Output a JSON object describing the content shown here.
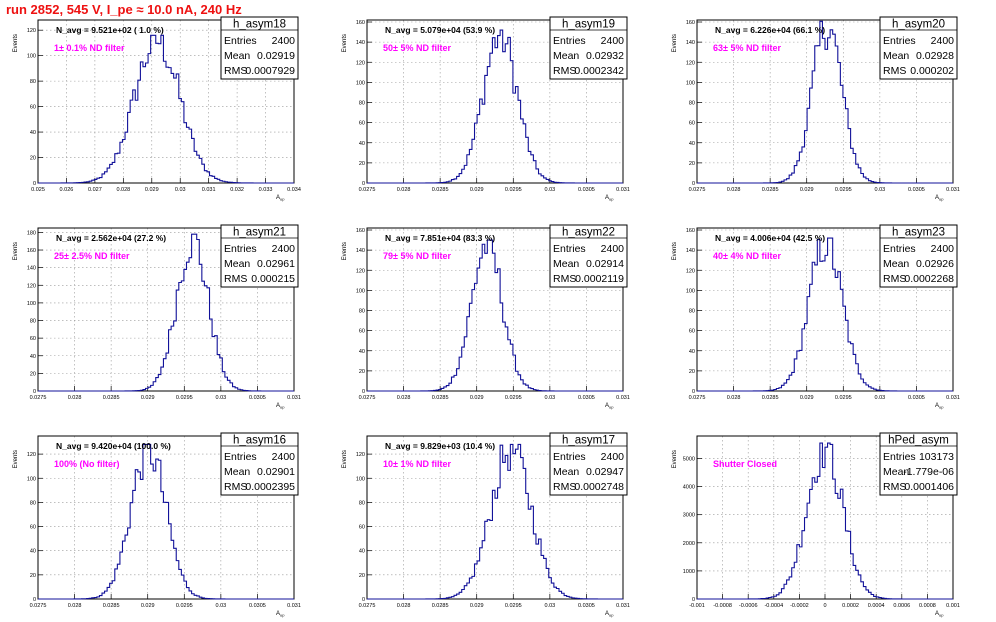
{
  "header": {
    "title": "run 2852,   545 V, I_pe ≈ 10.0 nA, 240 Hz"
  },
  "colors": {
    "title": "#ee1111",
    "histogram": "#111199",
    "filter_label": "#ff00ff"
  },
  "chart_data": [
    {
      "type": "histogram",
      "name": "h_asym18",
      "navg": "N_avg = 9.521e+02 ( 1.0 %)",
      "filter": "1± 0.1% ND filter",
      "stats": {
        "entries": "2400",
        "mean": "0.02919",
        "rms": "0.0007929"
      },
      "xlim": [
        0.025,
        0.034
      ],
      "xticks": [
        "0.025",
        "0.026",
        "0.027",
        "0.028",
        "0.029",
        "0.03",
        "0.031",
        "0.032",
        "0.033",
        "0.034"
      ],
      "ylim": [
        0,
        128
      ],
      "yticks": [
        0,
        20,
        40,
        60,
        80,
        100,
        120
      ],
      "xlabel": "A_up",
      "ylabel": "Events",
      "shape": {
        "mean": 0.02919,
        "sigma": 0.00079,
        "peak": 116
      }
    },
    {
      "type": "histogram",
      "name": "h_asym19",
      "navg": "N_avg = 5.079e+04 (53.9 %)",
      "filter": "50± 5% ND filter",
      "stats": {
        "entries": "2400",
        "mean": "0.02932",
        "rms": "0.0002342"
      },
      "xlim": [
        0.0275,
        0.031
      ],
      "xticks": [
        "0.0275",
        "0.028",
        "0.0285",
        "0.029",
        "0.0295",
        "0.03",
        "0.0305",
        "0.031"
      ],
      "ylim": [
        0,
        162
      ],
      "yticks": [
        0,
        20,
        40,
        60,
        80,
        100,
        120,
        140,
        160
      ],
      "xlabel": "A_up",
      "ylabel": "Events",
      "shape": {
        "mean": 0.02932,
        "sigma": 0.000234,
        "peak": 152
      }
    },
    {
      "type": "histogram",
      "name": "h_asym20",
      "navg": "N_avg = 6.226e+04 (66.1 %)",
      "filter": "63± 5% ND filter",
      "stats": {
        "entries": "2400",
        "mean": "0.02928",
        "rms": "0.000202"
      },
      "xlim": [
        0.0275,
        0.031
      ],
      "xticks": [
        "0.0275",
        "0.028",
        "0.0285",
        "0.029",
        "0.0295",
        "0.03",
        "0.0305",
        "0.031"
      ],
      "ylim": [
        0,
        162
      ],
      "yticks": [
        0,
        20,
        40,
        60,
        80,
        100,
        120,
        140,
        160
      ],
      "xlabel": "A_up",
      "ylabel": "Events",
      "shape": {
        "mean": 0.02928,
        "sigma": 0.000202,
        "peak": 162
      }
    },
    {
      "type": "histogram",
      "name": "h_asym21",
      "navg": "N_avg = 2.562e+04 (27.2 %)",
      "filter": "25± 2.5% ND filter",
      "stats": {
        "entries": "2400",
        "mean": "0.02961",
        "rms": "0.000215"
      },
      "xlim": [
        0.0275,
        0.031
      ],
      "xticks": [
        "0.0275",
        "0.028",
        "0.0285",
        "0.029",
        "0.0295",
        "0.03",
        "0.0305",
        "0.031"
      ],
      "ylim": [
        0,
        185
      ],
      "yticks": [
        0,
        20,
        40,
        60,
        80,
        100,
        120,
        140,
        160,
        180
      ],
      "xlabel": "A_up",
      "ylabel": "Events",
      "shape": {
        "mean": 0.02961,
        "sigma": 0.000215,
        "peak": 178
      }
    },
    {
      "type": "histogram",
      "name": "h_asym22",
      "navg": "N_avg = 7.851e+04 (83.3 %)",
      "filter": "79± 5% ND filter",
      "stats": {
        "entries": "2400",
        "mean": "0.02914",
        "rms": "0.0002119"
      },
      "xlim": [
        0.0275,
        0.031
      ],
      "xticks": [
        "0.0275",
        "0.028",
        "0.0285",
        "0.029",
        "0.0295",
        "0.03",
        "0.0305",
        "0.031"
      ],
      "ylim": [
        0,
        162
      ],
      "yticks": [
        0,
        20,
        40,
        60,
        80,
        100,
        120,
        140,
        160
      ],
      "xlabel": "A_up",
      "ylabel": "Events",
      "shape": {
        "mean": 0.02914,
        "sigma": 0.000212,
        "peak": 150
      }
    },
    {
      "type": "histogram",
      "name": "h_asym23",
      "navg": "N_avg = 4.006e+04 (42.5 %)",
      "filter": "40± 4% ND filter",
      "stats": {
        "entries": "2400",
        "mean": "0.02926",
        "rms": "0.0002268"
      },
      "xlim": [
        0.0275,
        0.031
      ],
      "xticks": [
        "0.0275",
        "0.028",
        "0.0285",
        "0.029",
        "0.0295",
        "0.03",
        "0.0305",
        "0.031"
      ],
      "ylim": [
        0,
        162
      ],
      "yticks": [
        0,
        20,
        40,
        60,
        80,
        100,
        120,
        140,
        160
      ],
      "xlabel": "A_up",
      "ylabel": "Events",
      "shape": {
        "mean": 0.02926,
        "sigma": 0.000227,
        "peak": 152
      }
    },
    {
      "type": "histogram",
      "name": "h_asym16",
      "navg": "N_avg = 9.420e+04 (100.0 %)",
      "filter": "100% (No filter)",
      "stats": {
        "entries": "2400",
        "mean": "0.02901",
        "rms": "0.0002395"
      },
      "xlim": [
        0.0275,
        0.031
      ],
      "xticks": [
        "0.0275",
        "0.028",
        "0.0285",
        "0.029",
        "0.0295",
        "0.03",
        "0.0305",
        "0.031"
      ],
      "ylim": [
        0,
        135
      ],
      "yticks": [
        0,
        20,
        40,
        60,
        80,
        100,
        120
      ],
      "xlabel": "A_up",
      "ylabel": "Events",
      "shape": {
        "mean": 0.02901,
        "sigma": 0.00024,
        "peak": 128
      }
    },
    {
      "type": "histogram",
      "name": "h_asym17",
      "navg": "N_avg = 9.829e+03 (10.4 %)",
      "filter": "10± 1% ND filter",
      "stats": {
        "entries": "2400",
        "mean": "0.02947",
        "rms": "0.0002748"
      },
      "xlim": [
        0.0275,
        0.031
      ],
      "xticks": [
        "0.0275",
        "0.028",
        "0.0285",
        "0.029",
        "0.0295",
        "0.03",
        "0.0305",
        "0.031"
      ],
      "ylim": [
        0,
        135
      ],
      "yticks": [
        0,
        20,
        40,
        60,
        80,
        100,
        120
      ],
      "xlabel": "A_up",
      "ylabel": "Events",
      "shape": {
        "mean": 0.02947,
        "sigma": 0.000275,
        "peak": 128
      }
    },
    {
      "type": "histogram",
      "name": "hPed_asym",
      "navg": "",
      "filter": "Shutter Closed",
      "stats": {
        "entries": "103173",
        "mean": "-1.779e-06",
        "rms": "0.0001406"
      },
      "xlim": [
        -0.001,
        0.001
      ],
      "xticks": [
        "-0.001",
        "-0.0008",
        "-0.0006",
        "-0.0004",
        "-0.0002",
        "0",
        "0.0002",
        "0.0004",
        "0.0006",
        "0.0008",
        "0.001"
      ],
      "ylim": [
        0,
        5800
      ],
      "yticks": [
        0,
        1000,
        2000,
        3000,
        4000,
        5000
      ],
      "xlabel": "A_up",
      "ylabel": "Events",
      "shape": {
        "mean": -1.8e-06,
        "sigma": 0.00014,
        "peak": 5550
      }
    }
  ]
}
